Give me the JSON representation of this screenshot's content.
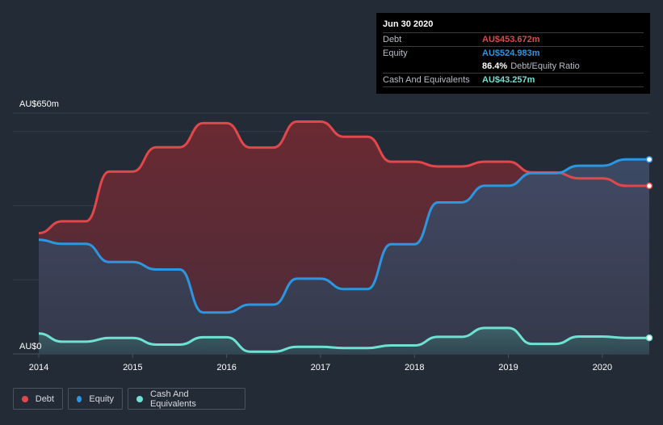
{
  "tooltip": {
    "date": "Jun 30 2020",
    "rows": [
      {
        "label": "Debt",
        "value": "AU$453.672m",
        "color": "#e2474b"
      },
      {
        "label": "Equity",
        "value": "AU$524.983m",
        "color": "#2d96e0"
      }
    ],
    "ratio_value": "86.4%",
    "ratio_label": "Debt/Equity Ratio",
    "cash": {
      "label": "Cash And Equivalents",
      "value": "AU$43.257m",
      "color": "#6fe1d3"
    }
  },
  "legend": [
    {
      "label": "Debt",
      "color": "#e2474b"
    },
    {
      "label": "Equity",
      "color": "#2d96e0"
    },
    {
      "label": "Cash And Equivalents",
      "color": "#6fe1d3"
    }
  ],
  "chart_data": {
    "type": "area",
    "title": "",
    "xlabel": "",
    "ylabel": "",
    "y_top_label": "AU$650m",
    "y_bottom_label": "AU$0",
    "ylim": [
      0,
      650
    ],
    "xlim": [
      2014.0,
      2020.5
    ],
    "x_ticks": [
      2014,
      2015,
      2016,
      2017,
      2018,
      2019,
      2020
    ],
    "x_tick_labels": [
      "2014",
      "2015",
      "2016",
      "2017",
      "2018",
      "2019",
      "2020"
    ],
    "series": [
      {
        "name": "Debt",
        "color": "#e2474b",
        "points": [
          [
            2014.0,
            326
          ],
          [
            2014.25,
            358
          ],
          [
            2014.5,
            358
          ],
          [
            2014.75,
            492
          ],
          [
            2015.0,
            492
          ],
          [
            2015.25,
            558
          ],
          [
            2015.5,
            558
          ],
          [
            2015.75,
            623
          ],
          [
            2016.0,
            623
          ],
          [
            2016.25,
            557
          ],
          [
            2016.5,
            557
          ],
          [
            2016.75,
            627
          ],
          [
            2017.0,
            627
          ],
          [
            2017.25,
            586
          ],
          [
            2017.5,
            586
          ],
          [
            2017.75,
            519
          ],
          [
            2018.0,
            519
          ],
          [
            2018.25,
            506
          ],
          [
            2018.5,
            506
          ],
          [
            2018.75,
            519
          ],
          [
            2019.0,
            519
          ],
          [
            2019.25,
            490
          ],
          [
            2019.5,
            490
          ],
          [
            2019.75,
            474
          ],
          [
            2020.0,
            474
          ],
          [
            2020.25,
            453.672
          ],
          [
            2020.5,
            453.672
          ]
        ]
      },
      {
        "name": "Equity",
        "color": "#2d96e0",
        "points": [
          [
            2014.0,
            308
          ],
          [
            2014.25,
            297
          ],
          [
            2014.5,
            297
          ],
          [
            2014.75,
            248
          ],
          [
            2015.0,
            248
          ],
          [
            2015.25,
            228
          ],
          [
            2015.5,
            228
          ],
          [
            2015.75,
            112
          ],
          [
            2016.0,
            112
          ],
          [
            2016.25,
            133
          ],
          [
            2016.5,
            133
          ],
          [
            2016.75,
            203
          ],
          [
            2017.0,
            203
          ],
          [
            2017.25,
            175
          ],
          [
            2017.5,
            175
          ],
          [
            2017.75,
            296
          ],
          [
            2018.0,
            296
          ],
          [
            2018.25,
            409
          ],
          [
            2018.5,
            409
          ],
          [
            2018.75,
            454
          ],
          [
            2019.0,
            454
          ],
          [
            2019.25,
            488
          ],
          [
            2019.5,
            488
          ],
          [
            2019.75,
            508
          ],
          [
            2020.0,
            508
          ],
          [
            2020.25,
            524.983
          ],
          [
            2020.5,
            524.983
          ]
        ]
      },
      {
        "name": "Cash And Equivalents",
        "color": "#6fe1d3",
        "points": [
          [
            2014.0,
            55
          ],
          [
            2014.25,
            33
          ],
          [
            2014.5,
            33
          ],
          [
            2014.75,
            43
          ],
          [
            2015.0,
            43
          ],
          [
            2015.25,
            25
          ],
          [
            2015.5,
            25
          ],
          [
            2015.75,
            45
          ],
          [
            2016.0,
            45
          ],
          [
            2016.25,
            6
          ],
          [
            2016.5,
            6
          ],
          [
            2016.75,
            19
          ],
          [
            2017.0,
            19
          ],
          [
            2017.25,
            16
          ],
          [
            2017.5,
            16
          ],
          [
            2017.75,
            23
          ],
          [
            2018.0,
            23
          ],
          [
            2018.25,
            46
          ],
          [
            2018.5,
            46
          ],
          [
            2018.75,
            70
          ],
          [
            2019.0,
            70
          ],
          [
            2019.25,
            27
          ],
          [
            2019.5,
            27
          ],
          [
            2019.75,
            47
          ],
          [
            2020.0,
            47
          ],
          [
            2020.25,
            43.257
          ],
          [
            2020.5,
            43.257
          ]
        ]
      }
    ]
  }
}
